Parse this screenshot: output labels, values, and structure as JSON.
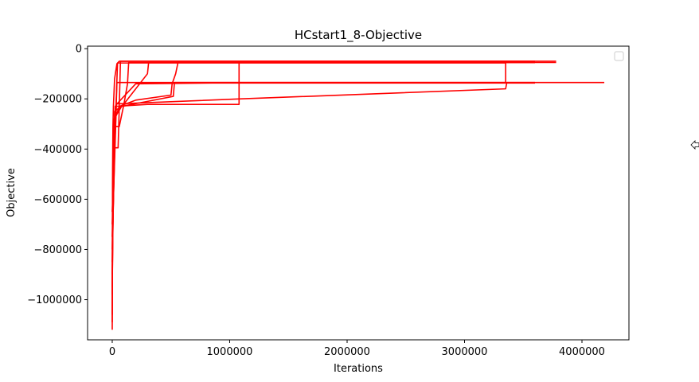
{
  "chart_data": {
    "type": "line",
    "title": "HCstart1_8-Objective",
    "xlabel": "Iterations",
    "ylabel": "Objective",
    "xlim": [
      -210000,
      4400000
    ],
    "ylim": [
      -1160000,
      10000
    ],
    "xticks": [
      0,
      1000000,
      2000000,
      3000000,
      4000000
    ],
    "xtick_labels": [
      "0",
      "1000000",
      "2000000",
      "3000000",
      "4000000"
    ],
    "yticks": [
      0,
      -200000,
      -400000,
      -600000,
      -800000,
      -1000000
    ],
    "ytick_labels": [
      "0",
      "−200000",
      "−400000",
      "−600000",
      "−800000",
      "−1000000"
    ],
    "grid": false,
    "legend": "top-right",
    "line_color": "#ff0000",
    "series": [
      {
        "x": [
          0,
          1000,
          3000,
          6000,
          10000,
          20000,
          40000,
          60000,
          3600000
        ],
        "y": [
          -1120000,
          -800000,
          -480000,
          -310000,
          -230000,
          -120000,
          -60000,
          -50000,
          -50000
        ]
      },
      {
        "x": [
          0,
          2000,
          8000,
          20000,
          50000,
          60000,
          70000,
          3780000
        ],
        "y": [
          -1090000,
          -650000,
          -395000,
          -395000,
          -395000,
          -230000,
          -50000,
          -50000
        ]
      },
      {
        "x": [
          0,
          5000,
          20000,
          60000,
          100000,
          130000,
          140000,
          3780000
        ],
        "y": [
          -1060000,
          -520000,
          -310000,
          -310000,
          -220000,
          -140000,
          -55000,
          -55000
        ]
      },
      {
        "x": [
          0,
          10000,
          60000,
          200000,
          500000,
          510000,
          540000,
          560000,
          3600000
        ],
        "y": [
          -980000,
          -300000,
          -230000,
          -205000,
          -185000,
          -140000,
          -100000,
          -55000,
          -55000
        ]
      },
      {
        "x": [
          0,
          15000,
          80000,
          300000,
          520000,
          530000,
          3600000
        ],
        "y": [
          -950000,
          -280000,
          -230000,
          -210000,
          -190000,
          -135000,
          -135000
        ]
      },
      {
        "x": [
          0,
          20000,
          100000,
          300000,
          310000,
          3600000
        ],
        "y": [
          -900000,
          -250000,
          -220000,
          -100000,
          -55000,
          -55000
        ]
      },
      {
        "x": [
          0,
          25000,
          300000,
          800000,
          1080000,
          1080000,
          3600000
        ],
        "y": [
          -850000,
          -230000,
          -222000,
          -222000,
          -222000,
          -55000,
          -55000
        ]
      },
      {
        "x": [
          0,
          30000,
          200000,
          850000,
          860000,
          3600000
        ],
        "y": [
          -800000,
          -225000,
          -140000,
          -137000,
          -137000,
          -137000
        ]
      },
      {
        "x": [
          0,
          35000,
          1100000,
          3350000,
          3360000,
          3600000,
          3600000,
          4190000
        ],
        "y": [
          -750000,
          -220000,
          -200000,
          -160000,
          -135000,
          -135000,
          -135000,
          -135000
        ]
      },
      {
        "x": [
          0,
          40000,
          400000,
          1100000,
          3350000
        ],
        "y": [
          -700000,
          -135000,
          -135000,
          -135000,
          -135000
        ]
      },
      {
        "x": [
          0,
          45000,
          600000,
          3350000,
          3350000
        ],
        "y": [
          -650000,
          -57000,
          -57000,
          -57000,
          -135000
        ]
      }
    ]
  }
}
